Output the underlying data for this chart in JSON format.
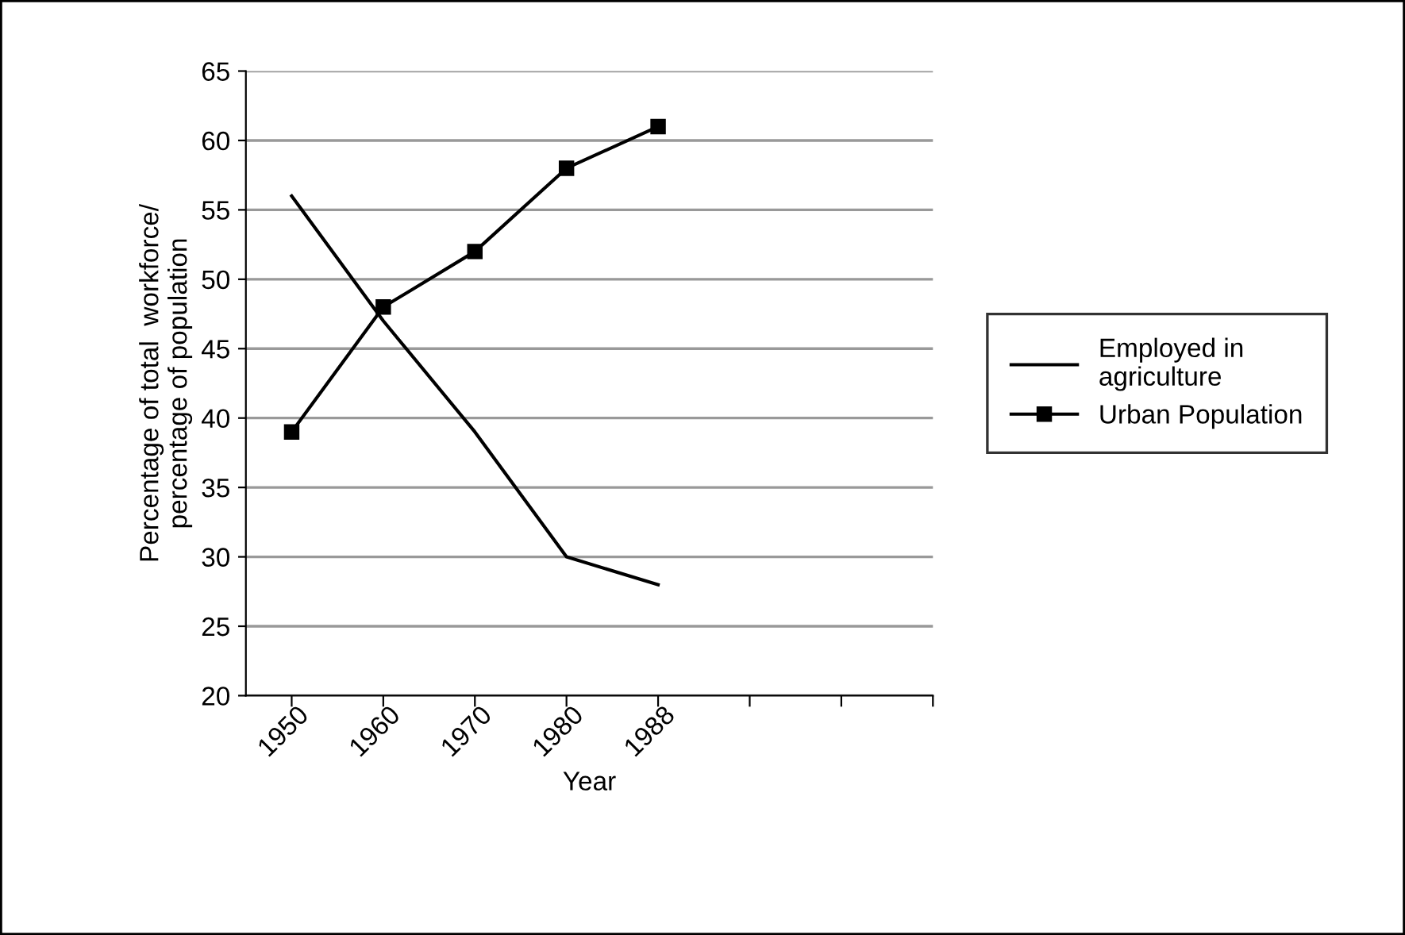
{
  "chart_data": {
    "type": "line",
    "xlabel": "Year",
    "ylabel": "Percentage of total  workforce/\npercentage of population",
    "categories": [
      "1950",
      "1960",
      "1970",
      "1980",
      "1988",
      null,
      null
    ],
    "series": [
      {
        "name": "Employed in\nagriculture",
        "color": "#000000",
        "marker": "none",
        "values": [
          56,
          47,
          39,
          30,
          28,
          null,
          null
        ]
      },
      {
        "name": "Urban Population",
        "color": "#000000",
        "marker": "square",
        "values": [
          39,
          48,
          52,
          58,
          61,
          null,
          null
        ]
      }
    ],
    "ylim": [
      20,
      65
    ],
    "yticks": [
      20,
      25,
      30,
      35,
      40,
      45,
      50,
      55,
      60,
      65
    ],
    "grid": "y",
    "legend": "right"
  }
}
